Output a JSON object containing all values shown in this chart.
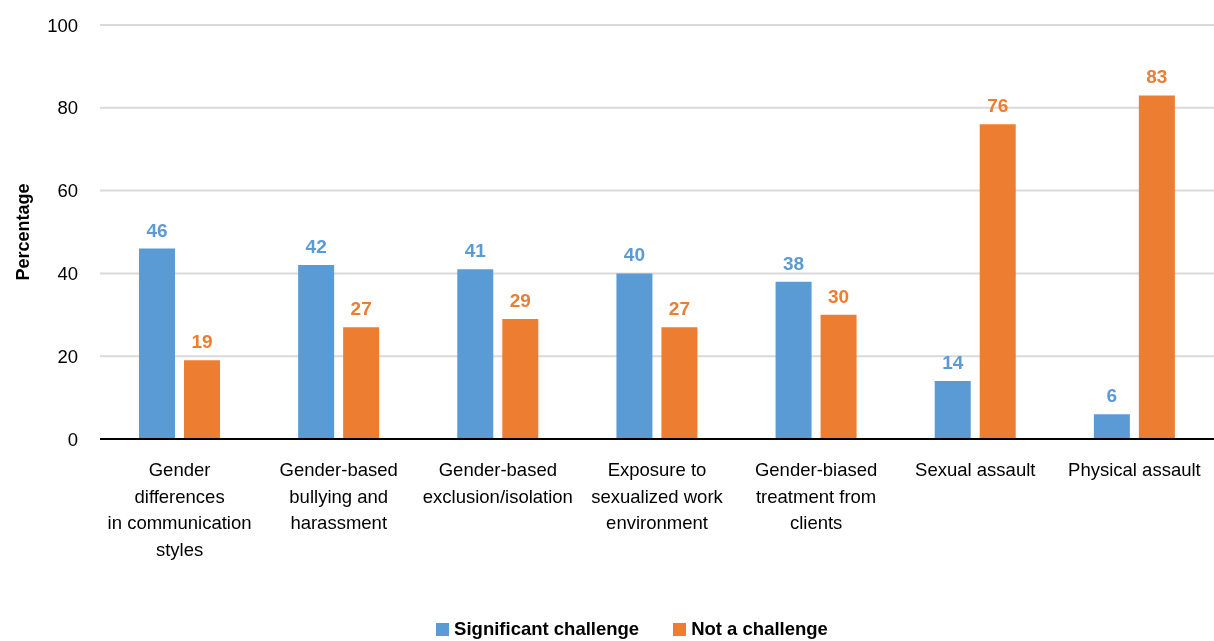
{
  "chart_data": {
    "type": "bar",
    "categories": [
      "Gender\ndifferences\nin communication\nstyles",
      "Gender-based\nbullying and\nharassment",
      "Gender-based\nexclusion/isolation",
      "Exposure to\nsexualized work\nenvironment",
      "Gender-biased\ntreatment from\nclients",
      "Sexual assault",
      "Physical assault"
    ],
    "series": [
      {
        "name": "Significant challenge",
        "color": "#5b9bd5",
        "values": [
          46,
          42,
          41,
          40,
          38,
          14,
          6
        ]
      },
      {
        "name": "Not a challenge",
        "color": "#ed7d31",
        "values": [
          19,
          27,
          29,
          27,
          30,
          76,
          83
        ]
      }
    ],
    "ylabel": "Percentage",
    "ylim": [
      0,
      100
    ],
    "yticks": [
      0,
      20,
      40,
      60,
      80,
      100
    ],
    "grid": "y",
    "legend": "bottom",
    "data_labels": true
  }
}
